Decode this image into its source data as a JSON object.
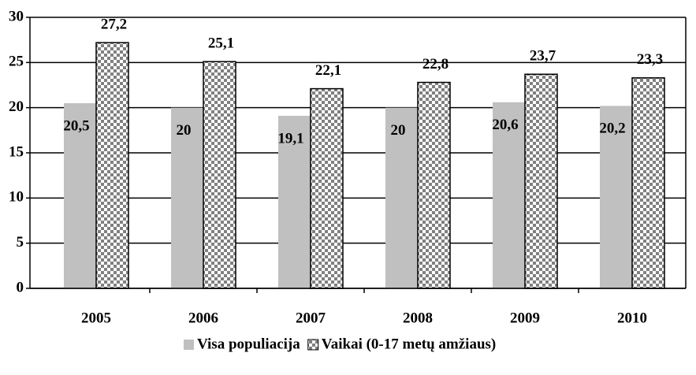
{
  "chart_data": {
    "type": "bar",
    "categories": [
      "2005",
      "2006",
      "2007",
      "2008",
      "2009",
      "2010"
    ],
    "series": [
      {
        "name": "Visa populiacija",
        "color": "#c0c0c0",
        "values": [
          20.5,
          20,
          19.1,
          20,
          20.6,
          20.2
        ],
        "value_labels": [
          "20,5",
          "20",
          "19,1",
          "20",
          "20,6",
          "20,2"
        ]
      },
      {
        "name": "Vaikai (0-17 metų amžiaus)",
        "color": "#808080",
        "pattern": "checker",
        "values": [
          27.2,
          25.1,
          22.1,
          22.8,
          23.7,
          23.3
        ],
        "value_labels": [
          "27,2",
          "25,1",
          "22,1",
          "22,8",
          "23,7",
          "23,3"
        ]
      }
    ],
    "ylim": [
      0,
      30
    ],
    "yticks": [
      0,
      5,
      10,
      15,
      20,
      25,
      30
    ],
    "grid": true,
    "legend": "bottom"
  }
}
